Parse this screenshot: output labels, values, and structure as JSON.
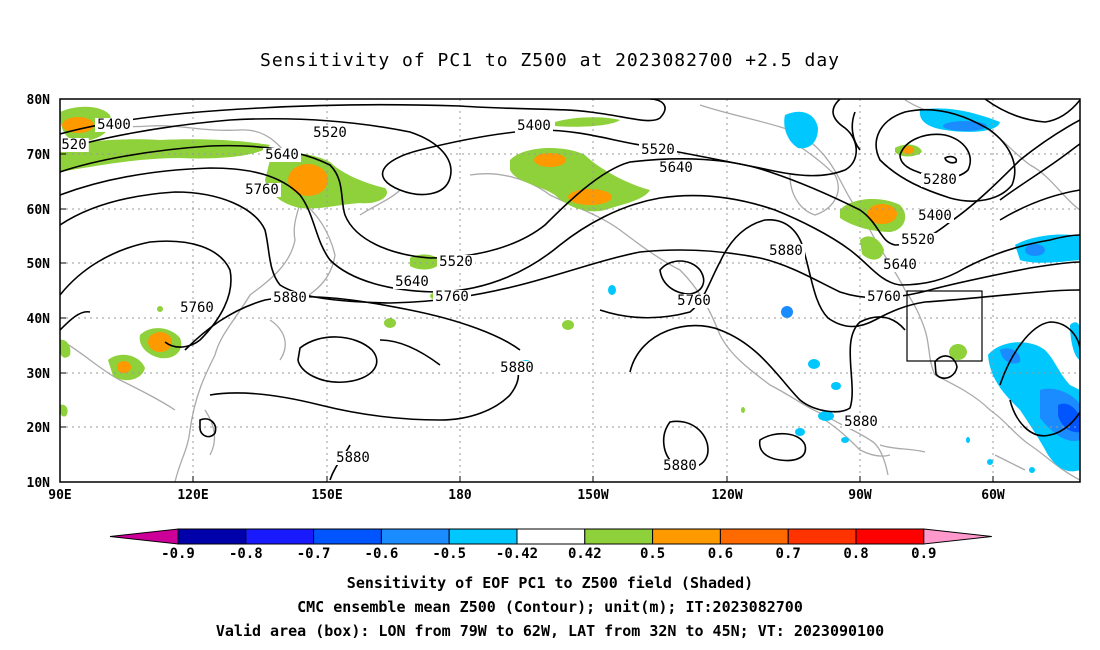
{
  "title": "Sensitivity of PC1 to Z500 at 2023082700 +2.5 day",
  "map": {
    "lat_labels": [
      "80N",
      "70N",
      "60N",
      "50N",
      "40N",
      "30N",
      "20N",
      "10N"
    ],
    "lon_labels": [
      "90E",
      "120E",
      "150E",
      "180",
      "150W",
      "120W",
      "90W",
      "60W"
    ],
    "contour_labels": [
      {
        "text": "5400"
      },
      {
        "text": "520"
      },
      {
        "text": "5520"
      },
      {
        "text": "5640"
      },
      {
        "text": "5760"
      },
      {
        "text": "5400"
      },
      {
        "text": "5520"
      },
      {
        "text": "5640"
      },
      {
        "text": "5520"
      },
      {
        "text": "5640"
      },
      {
        "text": "5760"
      },
      {
        "text": "5760"
      },
      {
        "text": "5880"
      },
      {
        "text": "5880"
      },
      {
        "text": "5760"
      },
      {
        "text": "5880"
      },
      {
        "text": "5280"
      },
      {
        "text": "5400"
      },
      {
        "text": "5520"
      },
      {
        "text": "5640"
      },
      {
        "text": "5760"
      },
      {
        "text": "5880"
      },
      {
        "text": "5880"
      },
      {
        "text": "5880"
      }
    ],
    "valid_box": {
      "lon_west": "79W",
      "lon_east": "62W",
      "lat_south": "32N",
      "lat_north": "45N"
    }
  },
  "colorbar": {
    "labels": [
      "-0.9",
      "-0.8",
      "-0.7",
      "-0.6",
      "-0.5",
      "-0.42",
      "0.42",
      "0.5",
      "0.6",
      "0.7",
      "0.8",
      "0.9"
    ],
    "colors": [
      "#0000aa",
      "#1a1aff",
      "#0055ff",
      "#1a8cff",
      "#00c8ff",
      "#ffffff",
      "#8ed13a",
      "#ff9900",
      "#ff6a00",
      "#ff3300",
      "#ff0000"
    ],
    "under_color": "#cc0099",
    "over_color": "#ff99cc"
  },
  "captions": {
    "line1": "Sensitivity of EOF PC1 to Z500 field (Shaded)",
    "line2": "CMC ensemble mean Z500 (Contour); unit(m); IT:2023082700",
    "line3": "Valid area (box): LON from 79W to 62W, LAT from 32N to 45N; VT: 2023090100"
  }
}
